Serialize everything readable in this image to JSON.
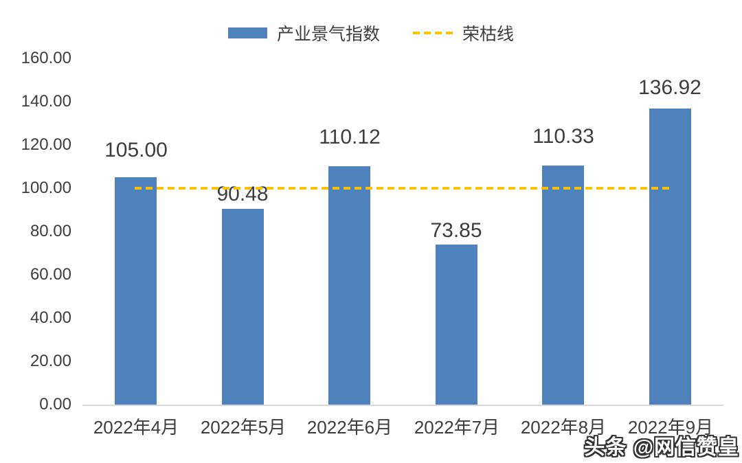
{
  "watermark": "头条 @网信赞皇",
  "chart_data": {
    "type": "bar",
    "title": "",
    "xlabel": "",
    "ylabel": "",
    "categories": [
      "2022年4月",
      "2022年5月",
      "2022年6月",
      "2022年7月",
      "2022年8月",
      "2022年9月"
    ],
    "series": [
      {
        "name": "产业景气指数",
        "values": [
          105.0,
          90.48,
          110.12,
          73.85,
          110.33,
          136.92
        ],
        "value_labels": [
          "105.00",
          "90.48",
          "110.12",
          "73.85",
          "110.33",
          "136.92"
        ],
        "color": "#4F81BD"
      }
    ],
    "reference_line": {
      "name": "荣枯线",
      "value": 100,
      "style": "dashed",
      "color": "#FFC000"
    },
    "ylim": [
      0,
      160
    ],
    "yticks": [
      0,
      20,
      40,
      60,
      80,
      100,
      120,
      140,
      160
    ],
    "ytick_labels": [
      "0.00",
      "20.00",
      "40.00",
      "60.00",
      "80.00",
      "100.00",
      "120.00",
      "140.00",
      "160.00"
    ],
    "grid": false,
    "legend_position": "top",
    "axis_line_color": "#d9d9d9",
    "text_color": "#3d3d3d"
  }
}
